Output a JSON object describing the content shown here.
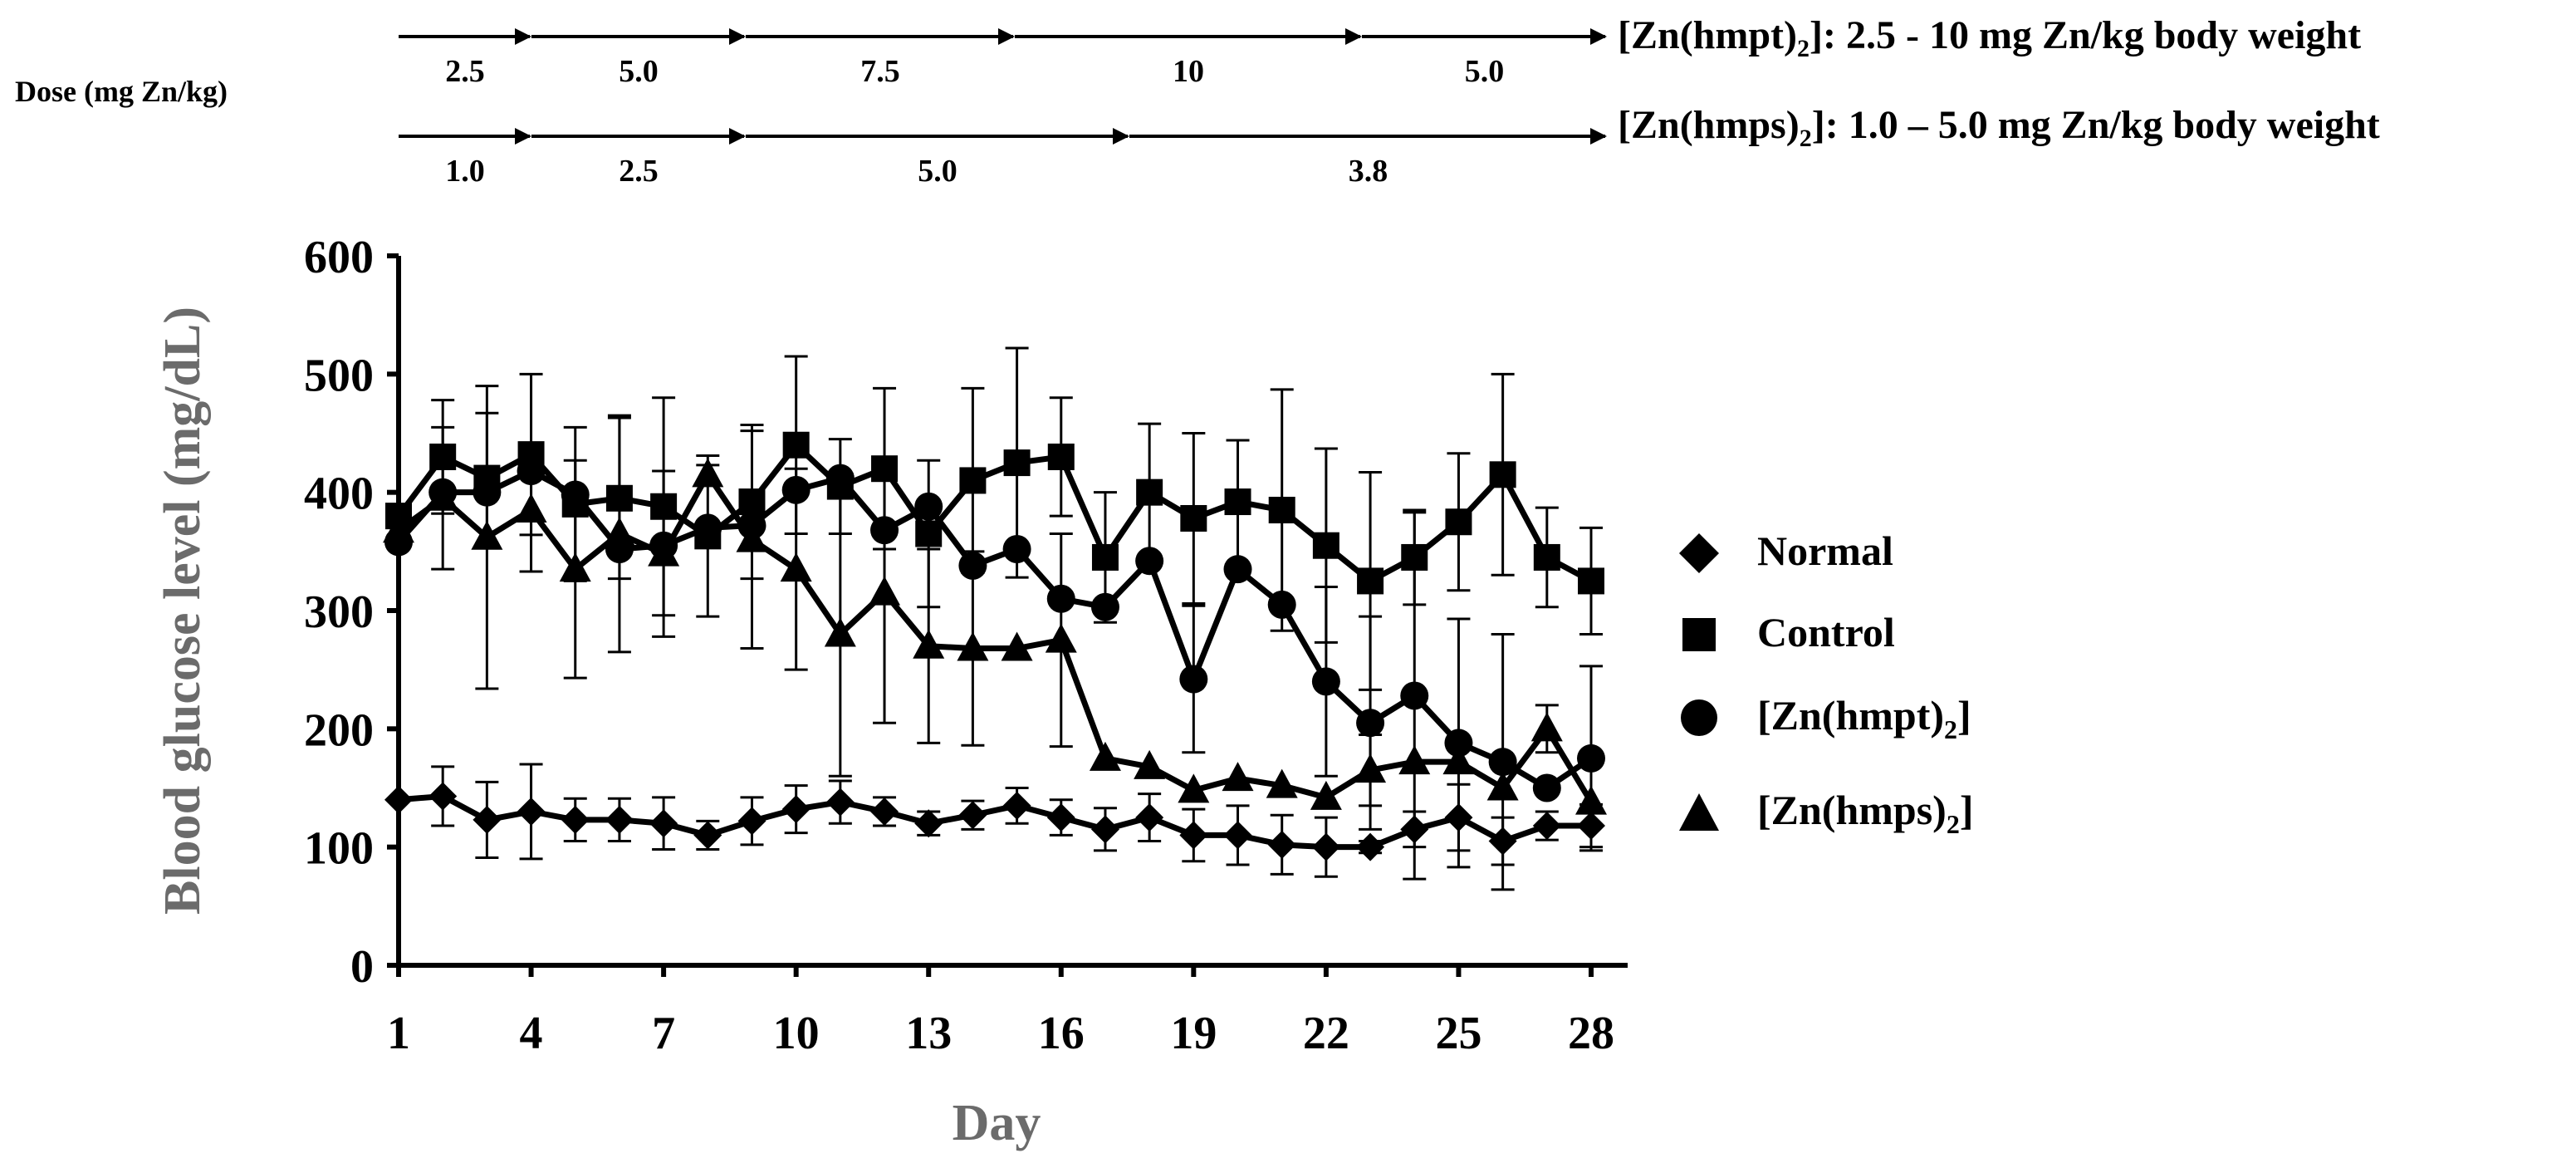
{
  "chart_data": {
    "type": "line",
    "title": "",
    "xlabel": "Day",
    "ylabel": "Blood glucose level (mg/dL)",
    "ylim": [
      0,
      600
    ],
    "xlim": [
      1,
      28
    ],
    "yticks": [
      0,
      100,
      200,
      300,
      400,
      500,
      600
    ],
    "xticks": [
      1,
      4,
      7,
      10,
      13,
      16,
      19,
      22,
      25,
      28
    ],
    "x": [
      1,
      2,
      3,
      4,
      5,
      6,
      7,
      8,
      9,
      10,
      11,
      12,
      13,
      14,
      15,
      16,
      17,
      18,
      19,
      20,
      21,
      22,
      23,
      24,
      25,
      26,
      27,
      28
    ],
    "series": [
      {
        "name": "Normal",
        "marker": "diamond",
        "values": [
          140,
          143,
          123,
          130,
          123,
          123,
          120,
          110,
          122,
          132,
          138,
          130,
          120,
          127,
          135,
          125,
          115,
          125,
          110,
          110,
          102,
          100,
          100,
          115,
          125,
          105,
          118,
          118
        ],
        "errors": [
          0,
          25,
          32,
          40,
          18,
          18,
          22,
          12,
          20,
          20,
          18,
          12,
          10,
          12,
          15,
          15,
          18,
          20,
          22,
          25,
          25,
          25,
          5,
          15,
          28,
          20,
          12,
          18
        ]
      },
      {
        "name": "Control",
        "marker": "square",
        "values": [
          380,
          430,
          412,
          432,
          390,
          395,
          388,
          363,
          392,
          440,
          405,
          420,
          365,
          410,
          425,
          430,
          345,
          400,
          378,
          392,
          385,
          355,
          325,
          345,
          375,
          415,
          345,
          325
        ],
        "errors": [
          0,
          48,
          55,
          68,
          65,
          68,
          92,
          68,
          65,
          75,
          40,
          68,
          62,
          78,
          97,
          50,
          55,
          58,
          72,
          52,
          102,
          82,
          92,
          40,
          58,
          85,
          42,
          45
        ]
      },
      {
        "name": "[Zn(hmpt)2]",
        "marker": "circle",
        "values": [
          358,
          400,
          400,
          418,
          398,
          352,
          355,
          370,
          372,
          402,
          412,
          368,
          388,
          338,
          352,
          310,
          303,
          342,
          242,
          335,
          305,
          240,
          205,
          228,
          188,
          172,
          150,
          175
        ],
        "errors": [
          0,
          0,
          0,
          0,
          0,
          0,
          0,
          0,
          0,
          0,
          0,
          0,
          0,
          0,
          0,
          0,
          0,
          0,
          62,
          0,
          0,
          80,
          90,
          155,
          105,
          108,
          0,
          78
        ]
      },
      {
        "name": "[Zn(hmps)2]",
        "marker": "triangle",
        "values": [
          368,
          395,
          362,
          385,
          335,
          365,
          348,
          415,
          360,
          335,
          280,
          315,
          270,
          268,
          268,
          275,
          175,
          168,
          148,
          158,
          152,
          142,
          165,
          172,
          172,
          150,
          200,
          138
        ],
        "errors": [
          0,
          60,
          128,
          52,
          92,
          100,
          70,
          8,
          92,
          85,
          120,
          110,
          82,
          82,
          0,
          90,
          0,
          0,
          0,
          0,
          0,
          0,
          30,
          0,
          0,
          0,
          20,
          0
        ]
      }
    ]
  },
  "legend": [
    {
      "label": "Normal",
      "sub": "",
      "tail": ""
    },
    {
      "label": "Control",
      "sub": "",
      "tail": ""
    },
    {
      "label": "[Zn(hmpt)",
      "sub": "2",
      "tail": "]"
    },
    {
      "label": "[Zn(hmps)",
      "sub": "2",
      "tail": "]"
    }
  ],
  "dose": {
    "label": "Dose (mg Zn/kg)",
    "hmpt": {
      "compound": "[Zn(hmpt)",
      "sub": "2",
      "description": "]: 2.5 - 10 mg Zn/kg body weight",
      "segments": [
        "2.5",
        "5.0",
        "7.5",
        "10",
        "5.0"
      ]
    },
    "hmps": {
      "compound": "[Zn(hmps)",
      "sub": "2",
      "description": "]: 1.0 – 5.0 mg Zn/kg body weight",
      "segments": [
        "1.0",
        "2.5",
        "5.0",
        "3.8"
      ]
    }
  }
}
